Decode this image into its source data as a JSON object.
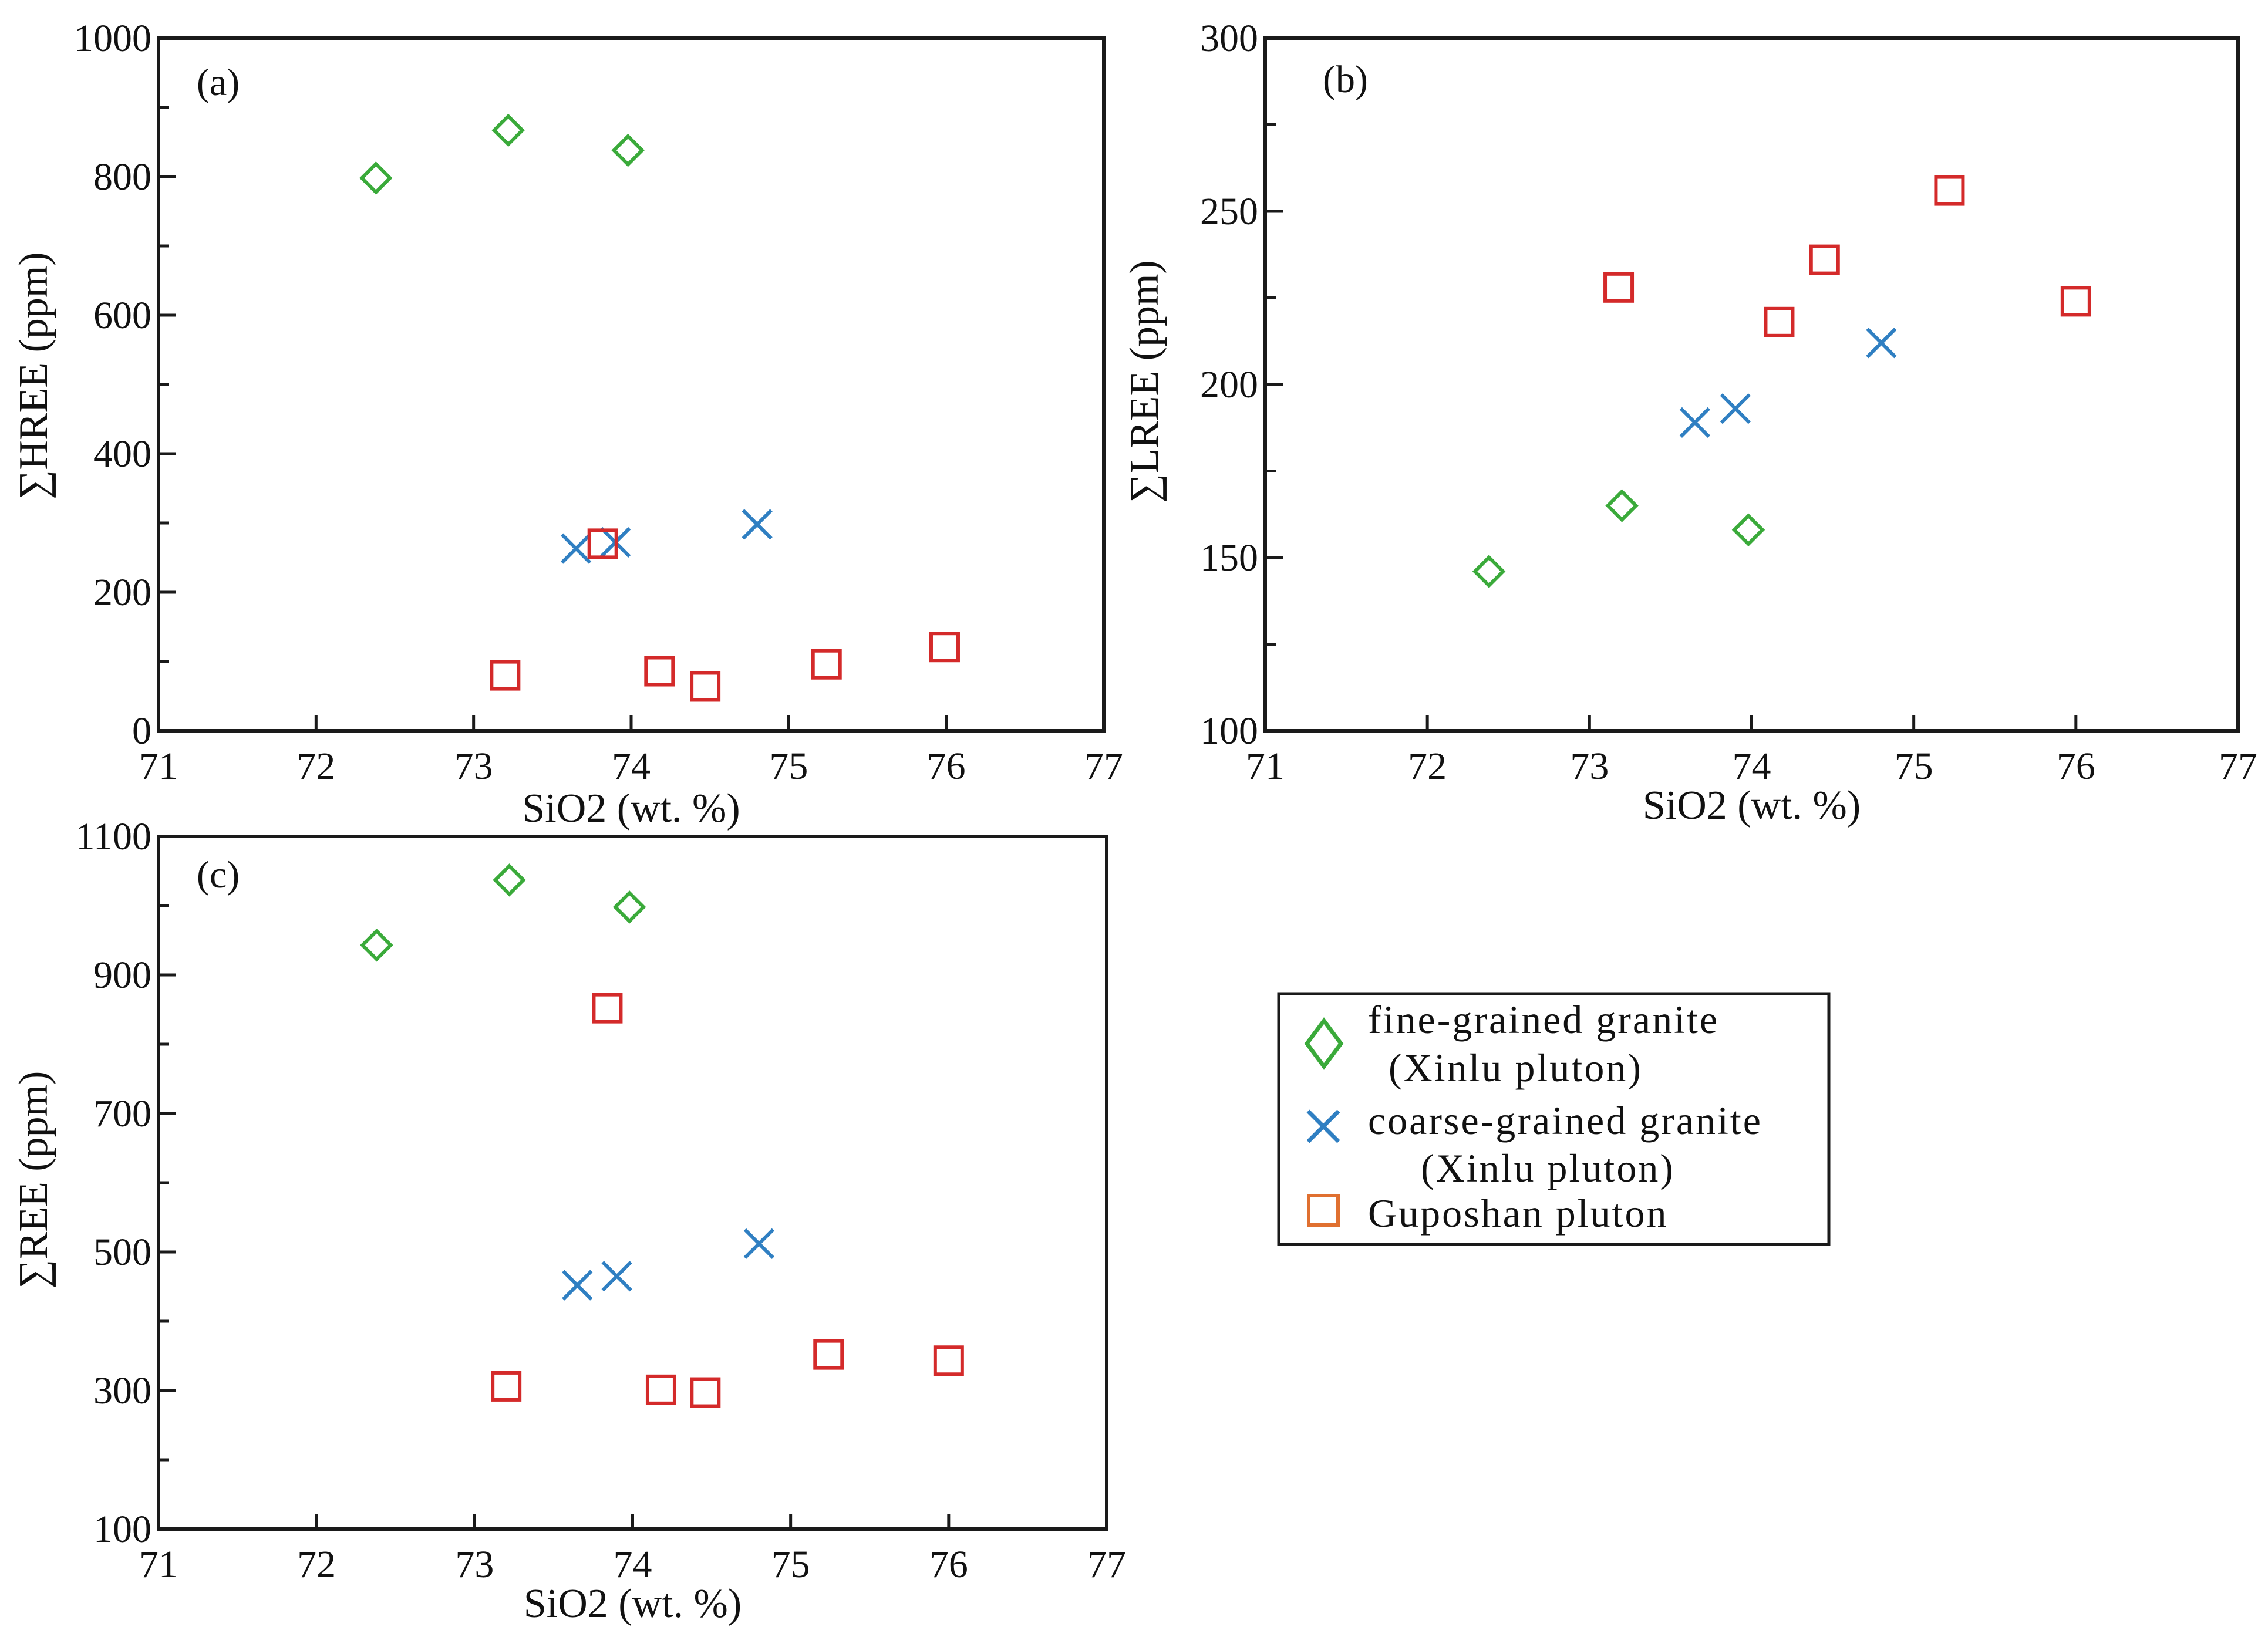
{
  "colors": {
    "fine": "#3aaa3a",
    "coarse": "#2f7fc2",
    "guposhan": "#d42a2a",
    "guposhan_legend": "#e07030"
  },
  "legend": {
    "items": [
      {
        "label": "fine-grained granite",
        "sub": "(Xinlu  pluton)",
        "marker": "diamond"
      },
      {
        "label": "coarse-grained granite",
        "sub": "(Xinlu  pluton)",
        "marker": "cross"
      },
      {
        "label": "Guposhan  pluton",
        "sub": "",
        "marker": "square"
      }
    ]
  },
  "chart_data": [
    {
      "id": "a",
      "type": "scatter",
      "panel_label": "(a)",
      "xlabel": "SiO2 (wt. %)",
      "ylabel": "∑HREE (ppm)",
      "xlim": [
        71,
        77
      ],
      "ylim": [
        0,
        1000
      ],
      "xticks": [
        "71",
        "72",
        "73",
        "74",
        "75",
        "76",
        "77"
      ],
      "yticks": [
        {
          "value": 0,
          "label": "0"
        },
        {
          "value": 200,
          "label": "200"
        },
        {
          "value": 400,
          "label": "400"
        },
        {
          "value": 600,
          "label": "600"
        },
        {
          "value": 800,
          "label": "800"
        },
        {
          "value": 1000,
          "label": "1000"
        }
      ],
      "minor_y_step": 100,
      "series": [
        {
          "name": "fine-grained granite (Xinlu pluton)",
          "marker": "diamond",
          "x": [
            72.38,
            73.22,
            73.98
          ],
          "y": [
            798,
            867,
            838
          ]
        },
        {
          "name": "coarse-grained granite (Xinlu pluton)",
          "marker": "cross",
          "x": [
            73.65,
            73.9,
            74.8
          ],
          "y": [
            263,
            272,
            298
          ]
        },
        {
          "name": "Guposhan pluton",
          "marker": "square",
          "x": [
            73.2,
            73.82,
            74.18,
            74.47,
            75.24,
            75.99
          ],
          "y": [
            80,
            270,
            86,
            64,
            96,
            121
          ]
        }
      ]
    },
    {
      "id": "b",
      "type": "scatter",
      "panel_label": "(b)",
      "xlabel": "SiO2 (wt. %)",
      "ylabel": "∑LREE (ppm)",
      "xlim": [
        71,
        77
      ],
      "ylim": [
        100,
        300
      ],
      "xticks": [
        "71",
        "72",
        "73",
        "74",
        "75",
        "76",
        "77"
      ],
      "yticks": [
        {
          "value": 100,
          "label": "100"
        },
        {
          "value": 150,
          "label": "150"
        },
        {
          "value": 200,
          "label": "200"
        },
        {
          "value": 250,
          "label": "250"
        },
        {
          "value": 300,
          "label": "300"
        }
      ],
      "minor_y_step": 25,
      "series": [
        {
          "name": "fine-grained granite (Xinlu pluton)",
          "marker": "diamond",
          "x": [
            72.38,
            73.2,
            73.98
          ],
          "y": [
            146,
            165,
            158
          ]
        },
        {
          "name": "coarse-grained granite (Xinlu pluton)",
          "marker": "cross",
          "x": [
            73.65,
            73.9,
            74.8
          ],
          "y": [
            189,
            193,
            212
          ]
        },
        {
          "name": "Guposhan pluton",
          "marker": "square",
          "x": [
            73.18,
            74.17,
            74.45,
            75.22,
            76.0
          ],
          "y": [
            228,
            218,
            236,
            256,
            224
          ]
        }
      ]
    },
    {
      "id": "c",
      "type": "scatter",
      "panel_label": "(c)",
      "xlabel": "SiO2 (wt. %)",
      "ylabel": "∑REE (ppm)",
      "xlim": [
        71,
        77
      ],
      "ylim": [
        100,
        1100
      ],
      "xticks": [
        "71",
        "72",
        "73",
        "74",
        "75",
        "76",
        "77"
      ],
      "yticks": [
        {
          "value": 100,
          "label": "100"
        },
        {
          "value": 300,
          "label": "300"
        },
        {
          "value": 500,
          "label": "500"
        },
        {
          "value": 700,
          "label": "700"
        },
        {
          "value": 900,
          "label": "900"
        },
        {
          "value": 1100,
          "label": "1100"
        }
      ],
      "minor_y_step": 100,
      "series": [
        {
          "name": "fine-grained granite (Xinlu pluton)",
          "marker": "diamond",
          "x": [
            72.38,
            73.22,
            73.98
          ],
          "y": [
            943,
            1037,
            998
          ]
        },
        {
          "name": "coarse-grained granite (Xinlu pluton)",
          "marker": "cross",
          "x": [
            73.65,
            73.9,
            74.8
          ],
          "y": [
            452,
            465,
            512
          ]
        },
        {
          "name": "Guposhan pluton",
          "marker": "square",
          "x": [
            73.2,
            73.84,
            74.18,
            74.46,
            75.24,
            76.0
          ],
          "y": [
            306,
            852,
            301,
            297,
            352,
            343
          ]
        }
      ]
    }
  ]
}
